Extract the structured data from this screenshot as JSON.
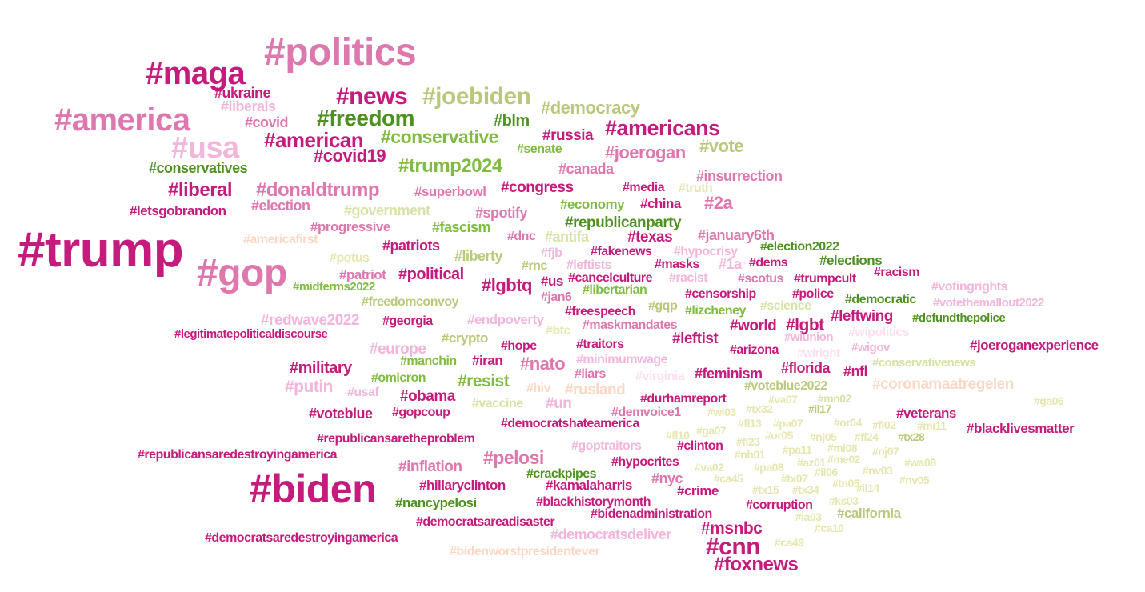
{
  "palette": {
    "magenta": "#c51b7d",
    "pink": "#de77ae",
    "light_pink": "#f1b6da",
    "pale_pink": "#fde0ef",
    "peach": "#fbd7c4",
    "green": "#4d9221",
    "mid_green": "#7fbc41",
    "light_green": "#b8e186",
    "pale_green": "#d4e3a5",
    "khaki": "#e6e6b0"
  },
  "words": [
    {
      "text": "#politics",
      "color": "#de77ae"
    },
    {
      "text": "#maga",
      "color": "#c51b7d"
    },
    {
      "text": "#america",
      "color": "#de77ae"
    },
    {
      "text": "#usa",
      "color": "#f1b6da"
    },
    {
      "text": "#trump",
      "color": "#c51b7d"
    },
    {
      "text": "#gop",
      "color": "#de77ae"
    },
    {
      "text": "#biden",
      "color": "#c51b7d"
    },
    {
      "text": "#ukraine",
      "color": "#c51b7d"
    },
    {
      "text": "#liberals",
      "color": "#f1b6da"
    },
    {
      "text": "#covid",
      "color": "#de77ae"
    },
    {
      "text": "#news",
      "color": "#c51b7d"
    },
    {
      "text": "#joebiden",
      "color": "#b8c97c"
    },
    {
      "text": "#democracy",
      "color": "#b8c97c"
    },
    {
      "text": "#freedom",
      "color": "#4d9221"
    },
    {
      "text": "#blm",
      "color": "#4d9221"
    },
    {
      "text": "#americans",
      "color": "#c51b7d"
    },
    {
      "text": "#american",
      "color": "#c51b7d"
    },
    {
      "text": "#conservative",
      "color": "#7fbc41"
    },
    {
      "text": "#russia",
      "color": "#c51b7d"
    },
    {
      "text": "#senate",
      "color": "#7fbc41"
    },
    {
      "text": "#vote",
      "color": "#b8c97c"
    },
    {
      "text": "#covid19",
      "color": "#c51b7d"
    },
    {
      "text": "#joerogan",
      "color": "#de77ae"
    },
    {
      "text": "#conservatives",
      "color": "#4d9221"
    },
    {
      "text": "#trump2024",
      "color": "#7fbc41"
    },
    {
      "text": "#canada",
      "color": "#de77ae"
    },
    {
      "text": "#insurrection",
      "color": "#de77ae"
    },
    {
      "text": "#liberal",
      "color": "#c51b7d"
    },
    {
      "text": "#donaldtrump",
      "color": "#de77ae"
    },
    {
      "text": "#superbowl",
      "color": "#de77ae"
    },
    {
      "text": "#congress",
      "color": "#c51b7d"
    },
    {
      "text": "#media",
      "color": "#c51b7d"
    },
    {
      "text": "#truth",
      "color": "#e6e6b0"
    },
    {
      "text": "#letsgobrandon",
      "color": "#c51b7d"
    },
    {
      "text": "#election",
      "color": "#de77ae"
    },
    {
      "text": "#government",
      "color": "#d4e3a5"
    },
    {
      "text": "#economy",
      "color": "#7fbc41"
    },
    {
      "text": "#china",
      "color": "#c51b7d"
    },
    {
      "text": "#2a",
      "color": "#de77ae"
    },
    {
      "text": "#spotify",
      "color": "#de77ae"
    },
    {
      "text": "#republicanparty",
      "color": "#4d9221"
    },
    {
      "text": "#progressive",
      "color": "#de77ae"
    },
    {
      "text": "#fascism",
      "color": "#7fbc41"
    },
    {
      "text": "#americafirst",
      "color": "#fbd7c4"
    },
    {
      "text": "#dnc",
      "color": "#de77ae"
    },
    {
      "text": "#antifa",
      "color": "#d4e3a5"
    },
    {
      "text": "#texas",
      "color": "#c51b7d"
    },
    {
      "text": "#january6th",
      "color": "#de77ae"
    },
    {
      "text": "#patriots",
      "color": "#c51b7d"
    },
    {
      "text": "#fjb",
      "color": "#f1b6da"
    },
    {
      "text": "#fakenews",
      "color": "#c51b7d"
    },
    {
      "text": "#hypocrisy",
      "color": "#f1b6da"
    },
    {
      "text": "#election2022",
      "color": "#4d9221"
    },
    {
      "text": "#potus",
      "color": "#e6e6b0"
    },
    {
      "text": "#liberty",
      "color": "#b8c97c"
    },
    {
      "text": "#rnc",
      "color": "#b8c97c"
    },
    {
      "text": "#leftists",
      "color": "#f1b6da"
    },
    {
      "text": "#masks",
      "color": "#c51b7d"
    },
    {
      "text": "#1a",
      "color": "#f1b6da"
    },
    {
      "text": "#dems",
      "color": "#c51b7d"
    },
    {
      "text": "#elections",
      "color": "#4d9221"
    },
    {
      "text": "#patriot",
      "color": "#de77ae"
    },
    {
      "text": "#political",
      "color": "#c51b7d"
    },
    {
      "text": "#cancelculture",
      "color": "#c51b7d"
    },
    {
      "text": "#racist",
      "color": "#f1b6da"
    },
    {
      "text": "#scotus",
      "color": "#de77ae"
    },
    {
      "text": "#trumpcult",
      "color": "#c51b7d"
    },
    {
      "text": "#racism",
      "color": "#c51b7d"
    },
    {
      "text": "#midterms2022",
      "color": "#7fbc41"
    },
    {
      "text": "#lgbtq",
      "color": "#c51b7d"
    },
    {
      "text": "#us",
      "color": "#c51b7d"
    },
    {
      "text": "#libertarian",
      "color": "#7fbc41"
    },
    {
      "text": "#censorship",
      "color": "#c51b7d"
    },
    {
      "text": "#police",
      "color": "#c51b7d"
    },
    {
      "text": "#votingrights",
      "color": "#f1b6da"
    },
    {
      "text": "#jan6",
      "color": "#de77ae"
    },
    {
      "text": "#democratic",
      "color": "#4d9221"
    },
    {
      "text": "#votethemallout2022",
      "color": "#f1b6da"
    },
    {
      "text": "#freedomconvoy",
      "color": "#b8c97c"
    },
    {
      "text": "#freespeech",
      "color": "#c51b7d"
    },
    {
      "text": "#gqp",
      "color": "#b8c97c"
    },
    {
      "text": "#lizcheney",
      "color": "#7fbc41"
    },
    {
      "text": "#science",
      "color": "#d4e3a5"
    },
    {
      "text": "#redwave2022",
      "color": "#f1b6da"
    },
    {
      "text": "#georgia",
      "color": "#c51b7d"
    },
    {
      "text": "#endpoverty",
      "color": "#f1b6da"
    },
    {
      "text": "#maskmandates",
      "color": "#de77ae"
    },
    {
      "text": "#world",
      "color": "#c51b7d"
    },
    {
      "text": "#lgbt",
      "color": "#c51b7d"
    },
    {
      "text": "#leftwing",
      "color": "#c51b7d"
    },
    {
      "text": "#defundthepolice",
      "color": "#4d9221"
    },
    {
      "text": "#legitimatepoliticaldiscourse",
      "color": "#c51b7d"
    },
    {
      "text": "#btc",
      "color": "#e6e6b0"
    },
    {
      "text": "#wipolitics",
      "color": "#fde0ef"
    },
    {
      "text": "#crypto",
      "color": "#b8c97c"
    },
    {
      "text": "#leftist",
      "color": "#c51b7d"
    },
    {
      "text": "#wiunion",
      "color": "#f1b6da"
    },
    {
      "text": "#europe",
      "color": "#f1b6da"
    },
    {
      "text": "#hope",
      "color": "#c51b7d"
    },
    {
      "text": "#traitors",
      "color": "#c51b7d"
    },
    {
      "text": "#arizona",
      "color": "#c51b7d"
    },
    {
      "text": "#wiright",
      "color": "#fde0ef"
    },
    {
      "text": "#wigov",
      "color": "#f1b6da"
    },
    {
      "text": "#joeroganexperience",
      "color": "#c51b7d"
    },
    {
      "text": "#manchin",
      "color": "#7fbc41"
    },
    {
      "text": "#iran",
      "color": "#c51b7d"
    },
    {
      "text": "#nato",
      "color": "#de77ae"
    },
    {
      "text": "#minimumwage",
      "color": "#f1b6da"
    },
    {
      "text": "#military",
      "color": "#c51b7d"
    },
    {
      "text": "#feminism",
      "color": "#c51b7d"
    },
    {
      "text": "#florida",
      "color": "#c51b7d"
    },
    {
      "text": "#nfl",
      "color": "#c51b7d"
    },
    {
      "text": "#conservativenews",
      "color": "#d4e3a5"
    },
    {
      "text": "#omicron",
      "color": "#7fbc41"
    },
    {
      "text": "#liars",
      "color": "#de77ae"
    },
    {
      "text": "#virginia",
      "color": "#fde0ef"
    },
    {
      "text": "#resist",
      "color": "#7fbc41"
    },
    {
      "text": "#voteblue2022",
      "color": "#b8c97c"
    },
    {
      "text": "#putin",
      "color": "#f1b6da"
    },
    {
      "text": "#usaf",
      "color": "#f1b6da"
    },
    {
      "text": "#hiv",
      "color": "#fbd7c4"
    },
    {
      "text": "#rusland",
      "color": "#fbd7c4"
    },
    {
      "text": "#coronamaatregelen",
      "color": "#fbd7c4"
    },
    {
      "text": "#obama",
      "color": "#c51b7d"
    },
    {
      "text": "#va07",
      "color": "#e6e6b0"
    },
    {
      "text": "#mn02",
      "color": "#d4e3a5"
    },
    {
      "text": "#ga06",
      "color": "#e6e6b0"
    },
    {
      "text": "#vaccine",
      "color": "#d4e3a5"
    },
    {
      "text": "#un",
      "color": "#f1b6da"
    },
    {
      "text": "#durhamreport",
      "color": "#c51b7d"
    },
    {
      "text": "#voteblue",
      "color": "#c51b7d"
    },
    {
      "text": "#gopcoup",
      "color": "#c51b7d"
    },
    {
      "text": "#demvoice1",
      "color": "#de77ae"
    },
    {
      "text": "#wi03",
      "color": "#e6e6b0"
    },
    {
      "text": "#tx32",
      "color": "#e6e6b0"
    },
    {
      "text": "#il17",
      "color": "#b8c97c"
    },
    {
      "text": "#veterans",
      "color": "#c51b7d"
    },
    {
      "text": "#democratshateamerica",
      "color": "#c51b7d"
    },
    {
      "text": "#fl13",
      "color": "#e6e6b0"
    },
    {
      "text": "#pa07",
      "color": "#e6e6b0"
    },
    {
      "text": "#or04",
      "color": "#e6e6b0"
    },
    {
      "text": "#fl02",
      "color": "#e6e6b0"
    },
    {
      "text": "#mi11",
      "color": "#e6e6b0"
    },
    {
      "text": "#blacklivesmatter",
      "color": "#c51b7d"
    },
    {
      "text": "#fl10",
      "color": "#e6e6b0"
    },
    {
      "text": "#ga07",
      "color": "#e6e6b0"
    },
    {
      "text": "#or05",
      "color": "#e6e6b0"
    },
    {
      "text": "#nj05",
      "color": "#e6e6b0"
    },
    {
      "text": "#fl24",
      "color": "#e6e6b0"
    },
    {
      "text": "#tx28",
      "color": "#b8c97c"
    },
    {
      "text": "#republicansaretheproblem",
      "color": "#c51b7d"
    },
    {
      "text": "#goptraitors",
      "color": "#f1b6da"
    },
    {
      "text": "#clinton",
      "color": "#c51b7d"
    },
    {
      "text": "#fl23",
      "color": "#e6e6b0"
    },
    {
      "text": "#pa11",
      "color": "#e6e6b0"
    },
    {
      "text": "#mi08",
      "color": "#e6e6b0"
    },
    {
      "text": "#nj07",
      "color": "#e6e6b0"
    },
    {
      "text": "#republicansaredestroyingamerica",
      "color": "#c51b7d"
    },
    {
      "text": "#nh01",
      "color": "#e6e6b0"
    },
    {
      "text": "#me02",
      "color": "#e6e6b0"
    },
    {
      "text": "#wa08",
      "color": "#e6e6b0"
    },
    {
      "text": "#pelosi",
      "color": "#de77ae"
    },
    {
      "text": "#inflation",
      "color": "#de77ae"
    },
    {
      "text": "#hypocrites",
      "color": "#c51b7d"
    },
    {
      "text": "#va02",
      "color": "#e6e6b0"
    },
    {
      "text": "#pa08",
      "color": "#e6e6b0"
    },
    {
      "text": "#az01",
      "color": "#e6e6b0"
    },
    {
      "text": "#nv03",
      "color": "#e6e6b0"
    },
    {
      "text": "#crackpipes",
      "color": "#4d9221"
    },
    {
      "text": "#il06",
      "color": "#e6e6b0"
    },
    {
      "text": "#nyc",
      "color": "#de77ae"
    },
    {
      "text": "#ca45",
      "color": "#e6e6b0"
    },
    {
      "text": "#tx07",
      "color": "#e6e6b0"
    },
    {
      "text": "#tn05",
      "color": "#e6e6b0"
    },
    {
      "text": "#nv05",
      "color": "#e6e6b0"
    },
    {
      "text": "#hillaryclinton",
      "color": "#c51b7d"
    },
    {
      "text": "#kamalaharris",
      "color": "#c51b7d"
    },
    {
      "text": "#crime",
      "color": "#c51b7d"
    },
    {
      "text": "#tx15",
      "color": "#e6e6b0"
    },
    {
      "text": "#tx34",
      "color": "#e6e6b0"
    },
    {
      "text": "#il14",
      "color": "#e6e6b0"
    },
    {
      "text": "#nancypelosi",
      "color": "#4d9221"
    },
    {
      "text": "#blackhistorymonth",
      "color": "#c51b7d"
    },
    {
      "text": "#ks03",
      "color": "#e6e6b0"
    },
    {
      "text": "#corruption",
      "color": "#c51b7d"
    },
    {
      "text": "#california",
      "color": "#b8c97c"
    },
    {
      "text": "#bidenadministration",
      "color": "#c51b7d"
    },
    {
      "text": "#democratsareadisaster",
      "color": "#c51b7d"
    },
    {
      "text": "#ia03",
      "color": "#e6e6b0"
    },
    {
      "text": "#msnbc",
      "color": "#c51b7d"
    },
    {
      "text": "#ca10",
      "color": "#e6e6b0"
    },
    {
      "text": "#democratsdeliver",
      "color": "#f1b6da"
    },
    {
      "text": "#democratsaredestroyingamerica",
      "color": "#c51b7d"
    },
    {
      "text": "#cnn",
      "color": "#c51b7d"
    },
    {
      "text": "#ca49",
      "color": "#e6e6b0"
    },
    {
      "text": "#bidenworstpresidentever",
      "color": "#fbd7c4"
    },
    {
      "text": "#foxnews",
      "color": "#c51b7d"
    }
  ]
}
